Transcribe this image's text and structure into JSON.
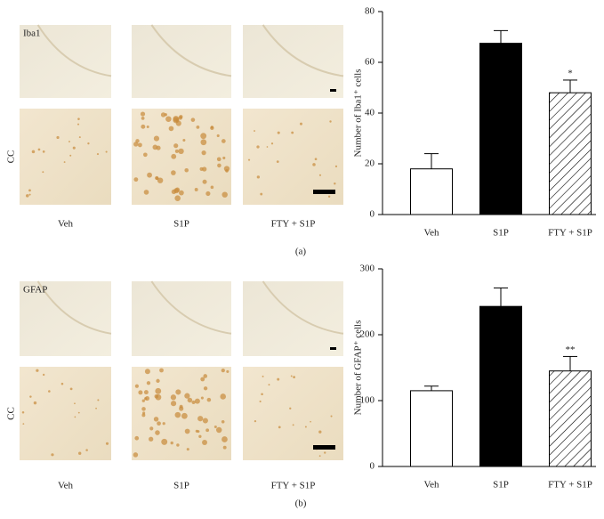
{
  "figure": [
    {
      "panel_label": "(a)",
      "stain": "Iba1",
      "region": "CC",
      "conditions": [
        "Veh",
        "S1P",
        "FTY + S1P"
      ]
    },
    {
      "panel_label": "(b)",
      "stain": "GFAP",
      "region": "CC",
      "conditions": [
        "Veh",
        "S1P",
        "FTY + S1P"
      ]
    }
  ],
  "chart_data": [
    {
      "type": "bar",
      "y_label": "Number of Iba1⁺ cells",
      "categories": [
        "Veh",
        "S1P",
        "FTY + S1P"
      ],
      "values": [
        18,
        67.5,
        48
      ],
      "errors": [
        6,
        5,
        5
      ],
      "fills": [
        "open",
        "solid",
        "hatched"
      ],
      "significance": [
        null,
        null,
        "*"
      ],
      "ylim": [
        0,
        80
      ],
      "yticks": [
        0,
        20,
        40,
        60,
        80
      ]
    },
    {
      "type": "bar",
      "y_label": "Number of GFAP⁺ cells",
      "categories": [
        "Veh",
        "S1P",
        "FTY + S1P"
      ],
      "values": [
        115,
        243,
        145
      ],
      "errors": [
        7,
        28,
        22
      ],
      "fills": [
        "open",
        "solid",
        "hatched"
      ],
      "significance": [
        null,
        null,
        "**"
      ],
      "ylim": [
        0,
        300
      ],
      "yticks": [
        0,
        100,
        200,
        300
      ]
    }
  ]
}
